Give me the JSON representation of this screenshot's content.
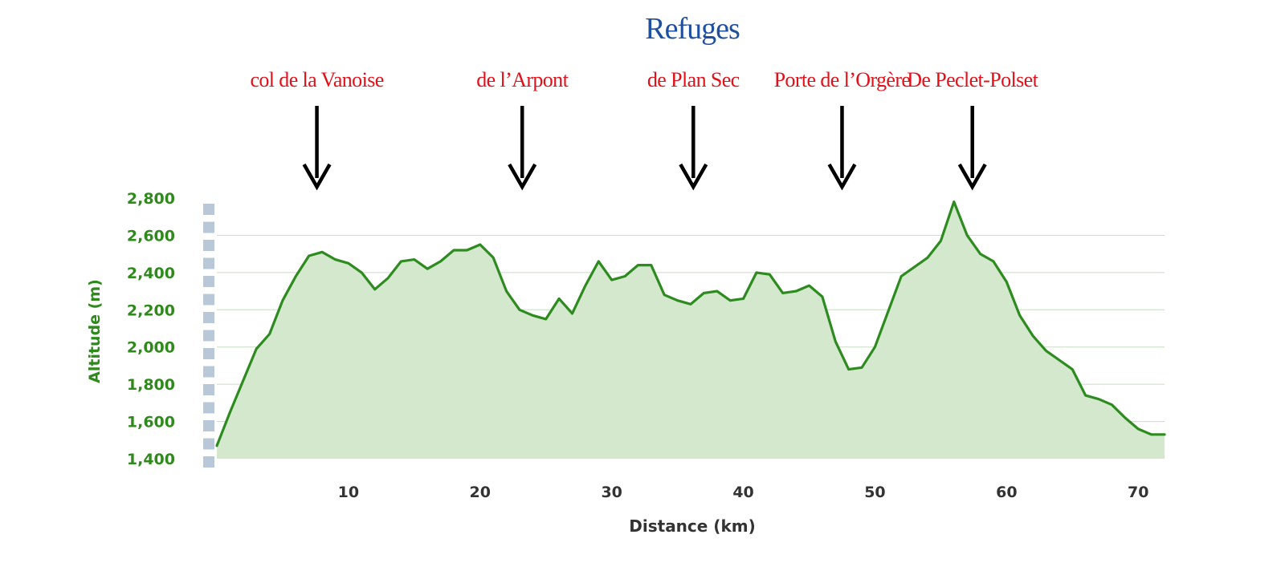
{
  "chart_data": {
    "type": "area",
    "title": "Refuges",
    "xlabel": "Distance (km)",
    "ylabel": "Altitude (m)",
    "xlim": [
      0,
      72
    ],
    "ylim": [
      1400,
      2800
    ],
    "x_ticks": [
      "10",
      "20",
      "30",
      "40",
      "50",
      "60",
      "70"
    ],
    "y_ticks": [
      "2,800",
      "2,600",
      "2,400",
      "2,200",
      "2,000",
      "1,800",
      "1,600",
      "1,400"
    ],
    "grid": true,
    "colors": {
      "line": "#2e8b1f",
      "fill": "#d3e8cd",
      "grid": "#c9dcc4",
      "annotation": "#e3101a",
      "title": "#1f4fa0",
      "arrow": "#000000"
    },
    "annotations": [
      {
        "label": "col de la Vanoise",
        "x": 7.6
      },
      {
        "label": "de l’Arpont",
        "x": 23.2
      },
      {
        "label": "de Plan Sec",
        "x": 36.2
      },
      {
        "label": "Porte de l’Orgère",
        "x": 47.5
      },
      {
        "label": "De Peclet-Polset",
        "x": 57.4
      }
    ],
    "series": [
      {
        "x": [
          0,
          1,
          2,
          3,
          3.5,
          4,
          5,
          6,
          7,
          8,
          9,
          10,
          11,
          12,
          13,
          14,
          15,
          16,
          17,
          18,
          19,
          20,
          21,
          22,
          23,
          24,
          25,
          26,
          27,
          28,
          29,
          30,
          31,
          32,
          33,
          34,
          35,
          36,
          37,
          38,
          39,
          40,
          41,
          42,
          43,
          44,
          45,
          46,
          47,
          48,
          49,
          50,
          51,
          52,
          53,
          54,
          55,
          56,
          57,
          58,
          59,
          60,
          61,
          62,
          63,
          64,
          65,
          66,
          67,
          68,
          69,
          70,
          71,
          72
        ],
        "y": [
          1470,
          1650,
          1820,
          1990,
          2030,
          2070,
          2250,
          2380,
          2490,
          2510,
          2470,
          2450,
          2400,
          2310,
          2370,
          2460,
          2470,
          2420,
          2460,
          2520,
          2520,
          2550,
          2480,
          2300,
          2200,
          2170,
          2150,
          2260,
          2180,
          2330,
          2460,
          2360,
          2380,
          2440,
          2440,
          2280,
          2250,
          2230,
          2290,
          2300,
          2250,
          2260,
          2400,
          2390,
          2290,
          2300,
          2330,
          2270,
          2030,
          1880,
          1890,
          2000,
          2190,
          2380,
          2430,
          2480,
          2570,
          2780,
          2600,
          2500,
          2460,
          2350,
          2170,
          2060,
          1980,
          1930,
          1880,
          1740,
          1720,
          1690,
          1620,
          1560,
          1530,
          1530
        ]
      }
    ]
  }
}
